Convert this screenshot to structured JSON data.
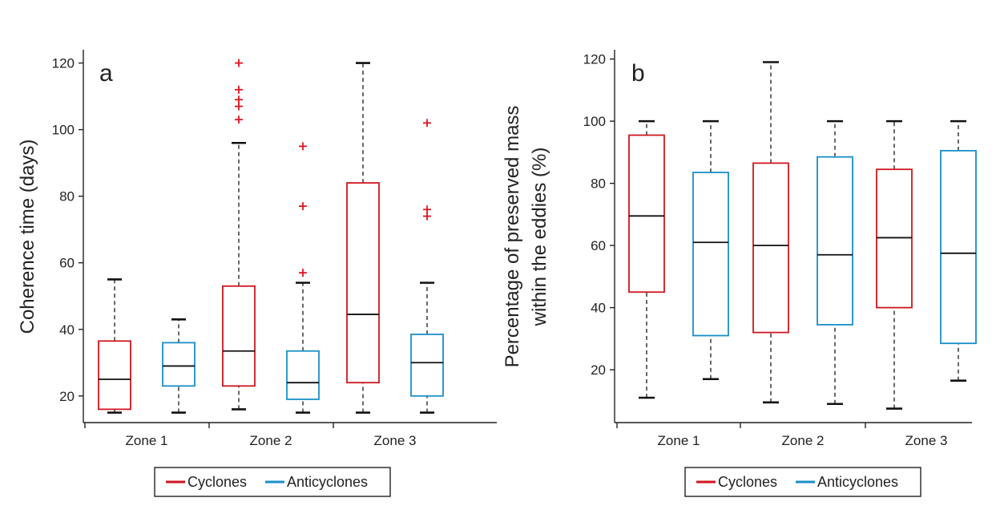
{
  "colors": {
    "cyclones": "#d0161f",
    "anticyclones": "#1a8fc9",
    "axis": "#222222",
    "median": "#111111",
    "whisker": "#444444",
    "outlier": "#e0141f"
  },
  "chart_data": [
    {
      "type": "box",
      "panel_label": "a",
      "ylabel": "Coherence time (days)",
      "ylabel_lines": [
        "Coherence time (days)"
      ],
      "ylim": [
        12,
        124
      ],
      "yticks": [
        20,
        40,
        60,
        80,
        100,
        120
      ],
      "categories": [
        "Zone 1",
        "Zone 2",
        "Zone 3"
      ],
      "series": [
        {
          "name": "Cyclones",
          "color": "cyclones",
          "boxes": [
            {
              "min": 15,
              "q1": 16,
              "median": 25,
              "q3": 36.5,
              "max": 55,
              "outliers": []
            },
            {
              "min": 16,
              "q1": 23,
              "median": 33.5,
              "q3": 53,
              "max": 96,
              "outliers": [
                103,
                107,
                109,
                112,
                120
              ]
            },
            {
              "min": 15,
              "q1": 24,
              "median": 44.5,
              "q3": 84,
              "max": 120,
              "outliers": []
            }
          ]
        },
        {
          "name": "Anticyclones",
          "color": "anticyclones",
          "boxes": [
            {
              "min": 15,
              "q1": 23,
              "median": 29,
              "q3": 36,
              "max": 43,
              "outliers": []
            },
            {
              "min": 15,
              "q1": 19,
              "median": 24,
              "q3": 33.5,
              "max": 54,
              "outliers": [
                57,
                77,
                95
              ]
            },
            {
              "min": 15,
              "q1": 20,
              "median": 30,
              "q3": 38.5,
              "max": 54,
              "outliers": [
                74,
                76,
                102
              ]
            }
          ]
        }
      ],
      "legend": {
        "placement": "bottom",
        "entries": [
          "Cyclones",
          "Anticyclones"
        ]
      }
    },
    {
      "type": "box",
      "panel_label": "b",
      "ylabel": "Percentage of preserved mass within the eddies (%)",
      "ylabel_lines": [
        "Percentage of preserved mass",
        "within the eddies (%)"
      ],
      "ylim": [
        3,
        123
      ],
      "yticks": [
        20,
        40,
        60,
        80,
        100,
        120
      ],
      "categories": [
        "Zone 1",
        "Zone 2",
        "Zone 3"
      ],
      "series": [
        {
          "name": "Cyclones",
          "color": "cyclones",
          "boxes": [
            {
              "min": 11,
              "q1": 45,
              "median": 69.5,
              "q3": 95.5,
              "max": 100,
              "outliers": []
            },
            {
              "min": 9.5,
              "q1": 32,
              "median": 60,
              "q3": 86.5,
              "max": 119,
              "outliers": []
            },
            {
              "min": 7.5,
              "q1": 40,
              "median": 62.5,
              "q3": 84.5,
              "max": 100,
              "outliers": []
            }
          ]
        },
        {
          "name": "Anticyclones",
          "color": "anticyclones",
          "boxes": [
            {
              "min": 17,
              "q1": 31,
              "median": 61,
              "q3": 83.5,
              "max": 100,
              "outliers": []
            },
            {
              "min": 9,
              "q1": 34.5,
              "median": 57,
              "q3": 88.5,
              "max": 100,
              "outliers": []
            },
            {
              "min": 16.5,
              "q1": 28.5,
              "median": 57.5,
              "q3": 90.5,
              "max": 100,
              "outliers": []
            }
          ]
        }
      ],
      "legend": {
        "placement": "bottom",
        "entries": [
          "Cyclones",
          "Anticyclones"
        ]
      }
    }
  ]
}
